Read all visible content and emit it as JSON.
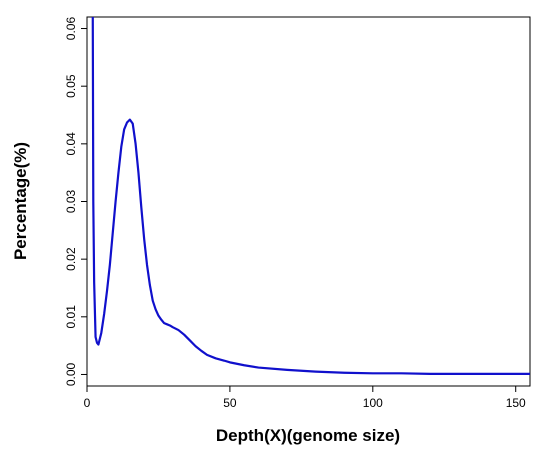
{
  "chart_data": {
    "type": "line",
    "title": "",
    "xlabel": "Depth(X)(genome size)",
    "ylabel": "Percentage(%)",
    "xlim": [
      0,
      155
    ],
    "ylim": [
      -0.002,
      0.062
    ],
    "x_ticks": [
      0,
      50,
      100,
      150
    ],
    "x_tick_labels": [
      "0",
      "50",
      "100",
      "150"
    ],
    "y_ticks": [
      0.0,
      0.01,
      0.02,
      0.03,
      0.04,
      0.05,
      0.06
    ],
    "y_tick_labels": [
      "0.00",
      "0.01",
      "0.02",
      "0.03",
      "0.04",
      "0.05",
      "0.06"
    ],
    "grid": false,
    "legend": "none",
    "series": [
      {
        "color": "#1010cc",
        "x": [
          2,
          2.2,
          2.5,
          3,
          3.5,
          4,
          5,
          6,
          7,
          8,
          9,
          10,
          11,
          12,
          13,
          14,
          15,
          16,
          17,
          18,
          19,
          20,
          21,
          22,
          23,
          24,
          25,
          26,
          27,
          28,
          29,
          30,
          32,
          34,
          36,
          38,
          40,
          42,
          45,
          48,
          50,
          55,
          60,
          70,
          80,
          90,
          100,
          110,
          120,
          130,
          140,
          150,
          155
        ],
        "y": [
          0.065,
          0.03,
          0.016,
          0.0065,
          0.0055,
          0.0052,
          0.0072,
          0.0105,
          0.0145,
          0.019,
          0.0245,
          0.03,
          0.035,
          0.0395,
          0.0425,
          0.0437,
          0.0442,
          0.0435,
          0.04,
          0.035,
          0.029,
          0.0235,
          0.019,
          0.0155,
          0.0128,
          0.0113,
          0.0102,
          0.0095,
          0.0089,
          0.0087,
          0.0085,
          0.0082,
          0.0077,
          0.0069,
          0.0059,
          0.0049,
          0.0041,
          0.0034,
          0.0028,
          0.0024,
          0.0021,
          0.0016,
          0.0012,
          0.0008,
          0.0005,
          0.0003,
          0.0002,
          0.0002,
          0.0001,
          0.0001,
          0.0001,
          0.0001,
          0.0001
        ]
      }
    ]
  }
}
